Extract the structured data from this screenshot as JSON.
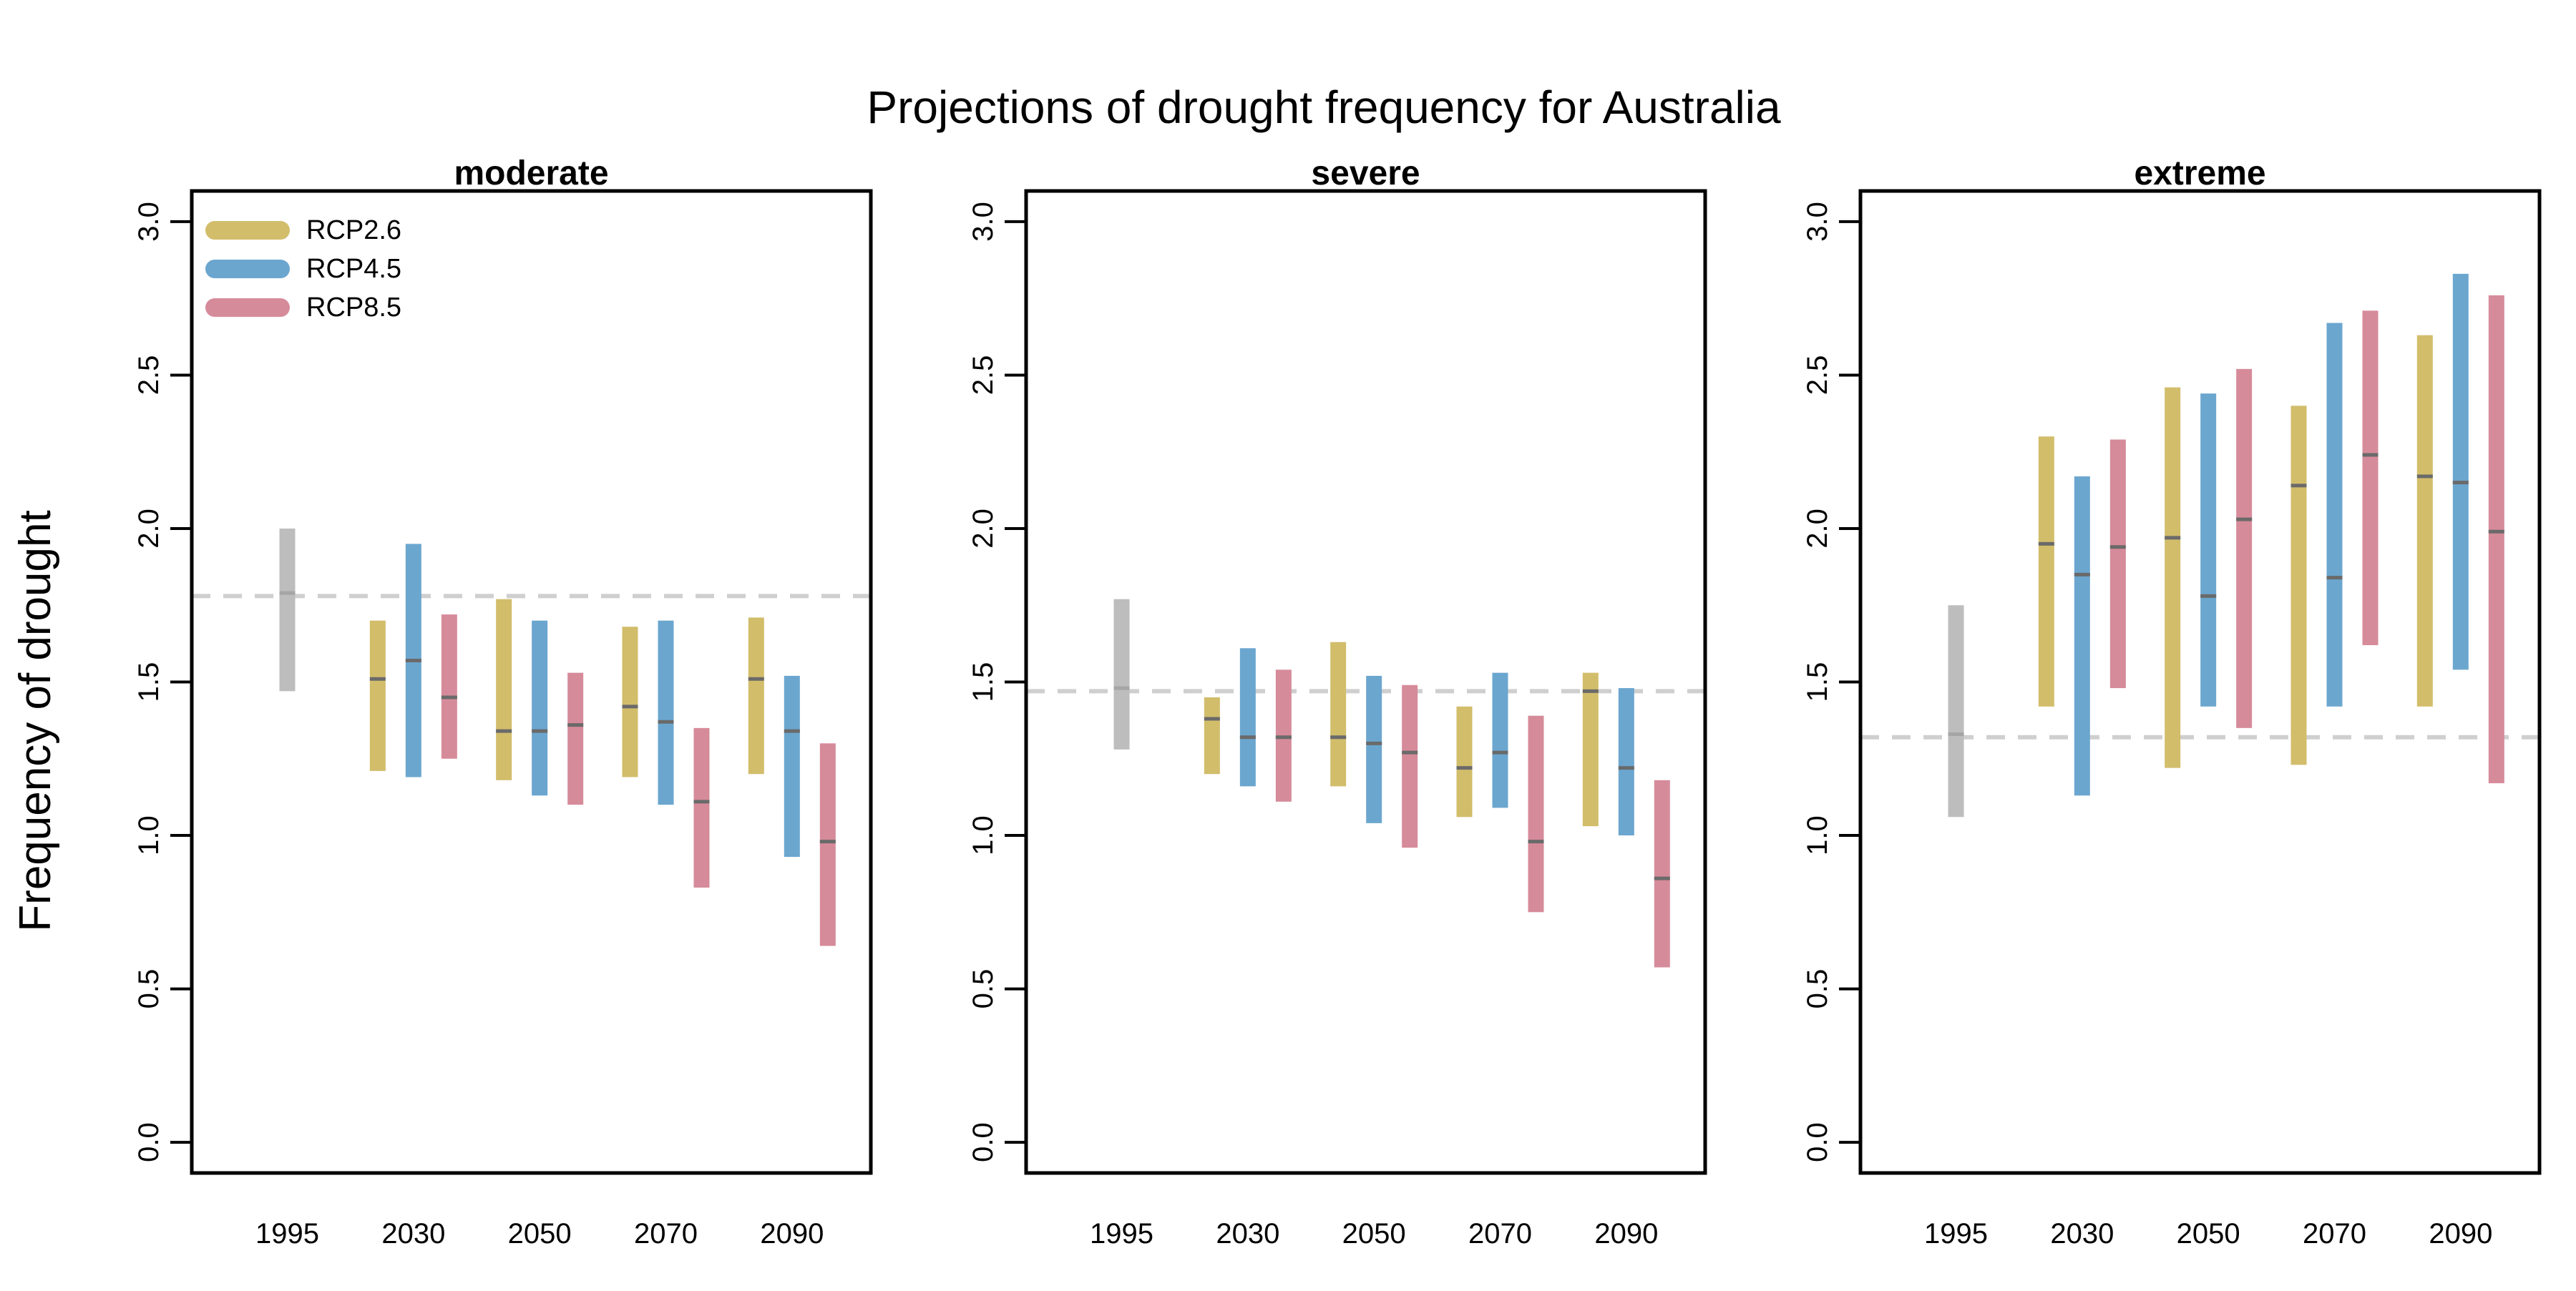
{
  "page": {
    "title": "Projections of drought frequency for Australia",
    "ylabel": "Frequency of drought"
  },
  "legend": [
    {
      "name": "RCP2.6",
      "color": "#d2bd6b"
    },
    {
      "name": "RCP4.5",
      "color": "#6ba6cf"
    },
    {
      "name": "RCP8.5",
      "color": "#d68b9a"
    }
  ],
  "chart_data": [
    {
      "type": "range-bar",
      "title": "moderate",
      "categories": [
        "1995",
        "2030",
        "2050",
        "2070",
        "2090"
      ],
      "ylim": [
        -0.1,
        3.1
      ],
      "yticks": [
        "0.0",
        "0.5",
        "1.0",
        "1.5",
        "2.0",
        "2.5",
        "3.0"
      ],
      "reference_line": 1.78,
      "baseline": {
        "name": "1995",
        "color": "#bdbdbd",
        "low": 1.47,
        "high": 2.0,
        "median": 1.79
      },
      "series": [
        {
          "name": "RCP2.6",
          "color": "#d2bd6b",
          "low": [
            1.21,
            1.18,
            1.19,
            1.2
          ],
          "high": [
            1.7,
            1.77,
            1.68,
            1.71
          ],
          "median": [
            1.51,
            1.34,
            1.42,
            1.51
          ]
        },
        {
          "name": "RCP4.5",
          "color": "#6ba6cf",
          "low": [
            1.19,
            1.13,
            1.1,
            0.93
          ],
          "high": [
            1.95,
            1.7,
            1.7,
            1.52
          ],
          "median": [
            1.57,
            1.34,
            1.37,
            1.34
          ]
        },
        {
          "name": "RCP8.5",
          "color": "#d68b9a",
          "low": [
            1.25,
            1.1,
            0.83,
            0.64
          ],
          "high": [
            1.72,
            1.53,
            1.35,
            1.3
          ],
          "median": [
            1.45,
            1.36,
            1.11,
            0.98
          ]
        }
      ]
    },
    {
      "type": "range-bar",
      "title": "severe",
      "categories": [
        "1995",
        "2030",
        "2050",
        "2070",
        "2090"
      ],
      "ylim": [
        -0.1,
        3.1
      ],
      "yticks": [
        "0.0",
        "0.5",
        "1.0",
        "1.5",
        "2.0",
        "2.5",
        "3.0"
      ],
      "reference_line": 1.47,
      "baseline": {
        "name": "1995",
        "color": "#bdbdbd",
        "low": 1.28,
        "high": 1.77,
        "median": 1.48
      },
      "series": [
        {
          "name": "RCP2.6",
          "color": "#d2bd6b",
          "low": [
            1.2,
            1.16,
            1.06,
            1.03
          ],
          "high": [
            1.45,
            1.63,
            1.42,
            1.53
          ],
          "median": [
            1.38,
            1.32,
            1.22,
            1.47
          ]
        },
        {
          "name": "RCP4.5",
          "color": "#6ba6cf",
          "low": [
            1.16,
            1.04,
            1.09,
            1.0
          ],
          "high": [
            1.61,
            1.52,
            1.53,
            1.48
          ],
          "median": [
            1.32,
            1.3,
            1.27,
            1.22
          ]
        },
        {
          "name": "RCP8.5",
          "color": "#d68b9a",
          "low": [
            1.11,
            0.96,
            0.75,
            0.57
          ],
          "high": [
            1.54,
            1.49,
            1.39,
            1.18
          ],
          "median": [
            1.32,
            1.27,
            0.98,
            0.86
          ]
        }
      ]
    },
    {
      "type": "range-bar",
      "title": "extreme",
      "categories": [
        "1995",
        "2030",
        "2050",
        "2070",
        "2090"
      ],
      "ylim": [
        -0.1,
        3.1
      ],
      "yticks": [
        "0.0",
        "0.5",
        "1.0",
        "1.5",
        "2.0",
        "2.5",
        "3.0"
      ],
      "reference_line": 1.32,
      "baseline": {
        "name": "1995",
        "color": "#bdbdbd",
        "low": 1.06,
        "high": 1.75,
        "median": 1.33
      },
      "series": [
        {
          "name": "RCP2.6",
          "color": "#d2bd6b",
          "low": [
            1.42,
            1.22,
            1.23,
            1.42
          ],
          "high": [
            2.3,
            2.46,
            2.4,
            2.63
          ],
          "median": [
            1.95,
            1.97,
            2.14,
            2.17
          ]
        },
        {
          "name": "RCP4.5",
          "color": "#6ba6cf",
          "low": [
            1.13,
            1.42,
            1.42,
            1.54
          ],
          "high": [
            2.17,
            2.44,
            2.67,
            2.83
          ],
          "median": [
            1.85,
            1.78,
            1.84,
            2.15
          ]
        },
        {
          "name": "RCP8.5",
          "color": "#d68b9a",
          "low": [
            1.48,
            1.35,
            1.62,
            1.17
          ],
          "high": [
            2.29,
            2.52,
            2.71,
            2.76
          ],
          "median": [
            1.94,
            2.03,
            2.24,
            1.99
          ]
        }
      ]
    }
  ]
}
